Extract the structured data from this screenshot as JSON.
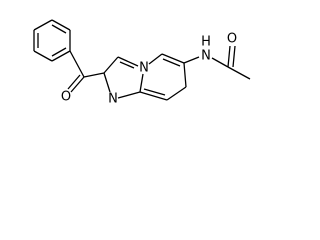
{
  "atoms": [
    {
      "label": "O"
    },
    {
      "label": "N"
    },
    {
      "label": "N"
    },
    {
      "label": "N"
    },
    {
      "label": "H"
    },
    {
      "label": "O"
    }
  ]
}
